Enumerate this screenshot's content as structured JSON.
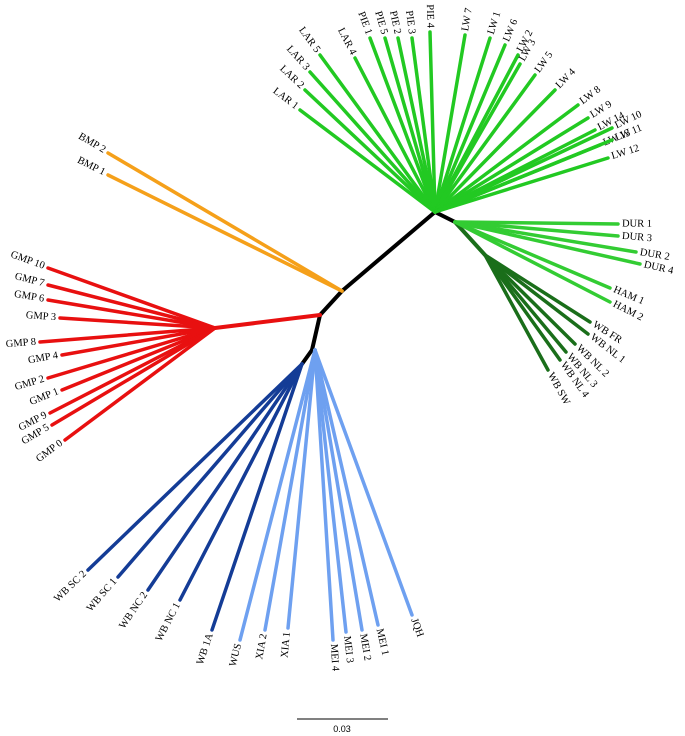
{
  "clades": [
    {
      "leaves": [
        "LAR 1",
        "LAR 2",
        "LAR 3",
        "LAR 5",
        "LAR 4",
        "PIE 1",
        "PIE 5",
        "PIE 2",
        "PIE 3",
        "PIE 4",
        "LW 7",
        "LW 1",
        "LW 6",
        "LW 2",
        "LW 3",
        "LW 5",
        "LW 4",
        "LW 8",
        "LW 9",
        "LW 14",
        "LW 13",
        "LW 10",
        "LW 11",
        "LW 12"
      ]
    },
    {
      "leaves": [
        "DUR 1",
        "DUR 3",
        "DUR 2",
        "DUR 4",
        "HAM 1",
        "HAM 2"
      ]
    },
    {
      "leaves": [
        "WB FR",
        "WB NL 1",
        "WB NL 2",
        "WB NL 3",
        "WB NL 4",
        "WB SW"
      ]
    },
    {
      "leaves": [
        "BMP 2",
        "BMP 1"
      ]
    },
    {
      "leaves": [
        "GMP 10",
        "GMP 7",
        "GMP 6",
        "GMP 3",
        "GMP 8",
        "GMP 4",
        "GMP 2",
        "GMP 1",
        "GMP 9",
        "GMP 5",
        "GMP 0"
      ]
    },
    {
      "leaves": [
        "WB SC 2",
        "WB SC 1",
        "WB NC 2",
        "WB NC 1",
        "WB 1A"
      ]
    },
    {
      "leaves": [
        "WUS",
        "XIA 2",
        "XIA 1",
        "MEI 4",
        "MEI 3",
        "MEI 2",
        "MEI 1",
        "JQH"
      ]
    }
  ],
  "scale_bar": "0.03"
}
